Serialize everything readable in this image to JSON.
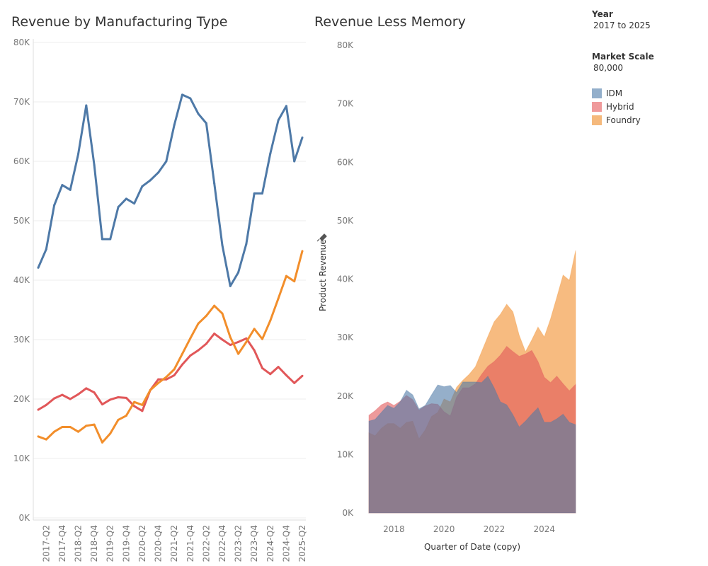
{
  "chart_data": [
    {
      "type": "line",
      "title": "Revenue by Manufacturing Type",
      "xlabel": "",
      "ylabel": "",
      "ylim": [
        0,
        80000
      ],
      "yticks": [
        "0K",
        "10K",
        "20K",
        "30K",
        "40K",
        "50K",
        "60K",
        "70K",
        "80K"
      ],
      "x": [
        "2017-Q1",
        "2017-Q2",
        "2017-Q3",
        "2017-Q4",
        "2018-Q1",
        "2018-Q2",
        "2018-Q3",
        "2018-Q4",
        "2019-Q1",
        "2019-Q2",
        "2019-Q3",
        "2019-Q4",
        "2020-Q1",
        "2020-Q2",
        "2020-Q3",
        "2020-Q4",
        "2021-Q1",
        "2021-Q2",
        "2021-Q3",
        "2021-Q4",
        "2022-Q1",
        "2022-Q2",
        "2022-Q3",
        "2022-Q4",
        "2023-Q1",
        "2023-Q2",
        "2023-Q3",
        "2023-Q4",
        "2024-Q1",
        "2024-Q2",
        "2024-Q3",
        "2024-Q4",
        "2025-Q1",
        "2025-Q2"
      ],
      "xticks": [
        "2017-Q2",
        "2017-Q4",
        "2018-Q2",
        "2018-Q4",
        "2019-Q2",
        "2019-Q4",
        "2020-Q2",
        "2020-Q4",
        "2021-Q2",
        "2021-Q4",
        "2022-Q2",
        "2022-Q4",
        "2023-Q2",
        "2023-Q4",
        "2024-Q2",
        "2024-Q4",
        "2025-Q2"
      ],
      "grid": true,
      "series": [
        {
          "name": "IDM",
          "color": "#4e79a7",
          "values": [
            42100,
            45200,
            52600,
            56000,
            55200,
            61200,
            69400,
            59400,
            46900,
            46900,
            52300,
            53700,
            52900,
            55800,
            56800,
            58100,
            60000,
            66100,
            71200,
            70600,
            68000,
            66400,
            56300,
            45900,
            39000,
            41300,
            46100,
            54600,
            54600,
            61300,
            66900,
            69300,
            60000,
            64000
          ]
        },
        {
          "name": "Hybrid",
          "color": "#e15759",
          "values": [
            18200,
            19000,
            20100,
            20700,
            20000,
            20800,
            21800,
            21100,
            19100,
            19900,
            20300,
            20200,
            18800,
            18000,
            21500,
            23300,
            23300,
            24000,
            25800,
            27300,
            28200,
            29300,
            31000,
            30000,
            29100,
            29600,
            30200,
            28200,
            25200,
            24200,
            25400,
            24000,
            22700,
            23900
          ]
        },
        {
          "name": "Foundry",
          "color": "#f28e2b",
          "values": [
            13700,
            13200,
            14500,
            15300,
            15300,
            14500,
            15500,
            15700,
            12700,
            14200,
            16500,
            17200,
            19500,
            19000,
            21500,
            22700,
            23700,
            25000,
            27600,
            30200,
            32700,
            34000,
            35700,
            34400,
            30400,
            27600,
            29600,
            31800,
            30100,
            33200,
            36900,
            40700,
            39800,
            44900
          ]
        }
      ]
    },
    {
      "type": "area",
      "title": "Revenue Less Memory",
      "xlabel": "Quarter of Date (copy)",
      "ylabel": "Product Revenue",
      "ylim": [
        0,
        80000
      ],
      "yticks": [
        "0K",
        "10K",
        "20K",
        "30K",
        "40K",
        "50K",
        "60K",
        "70K",
        "80K"
      ],
      "xticks": [
        "2018",
        "2020",
        "2022",
        "2024"
      ],
      "x_range": [
        "2017-Q1",
        "2025-Q2"
      ],
      "grid": false,
      "series": [
        {
          "name": "Foundry",
          "color": "#f28e2b",
          "values": [
            13700,
            13200,
            14500,
            15300,
            15300,
            14500,
            15500,
            15700,
            12700,
            14200,
            16500,
            17200,
            19500,
            19000,
            21500,
            22700,
            23700,
            25000,
            27600,
            30200,
            32700,
            34000,
            35700,
            34400,
            30400,
            27600,
            29600,
            31800,
            30100,
            33200,
            36900,
            40700,
            39800,
            44900
          ]
        },
        {
          "name": "Hybrid",
          "color": "#e15759",
          "values": [
            16700,
            17500,
            18500,
            19000,
            18400,
            19100,
            20100,
            19400,
            17600,
            18300,
            18700,
            18600,
            17300,
            16600,
            19800,
            21400,
            21400,
            22100,
            23700,
            25100,
            25900,
            27000,
            28500,
            27600,
            26800,
            27200,
            27800,
            25900,
            23200,
            22300,
            23400,
            22100,
            20900,
            22000
          ]
        },
        {
          "name": "IDM",
          "color": "#4e79a7",
          "values": [
            15700,
            16000,
            17200,
            18400,
            17900,
            19000,
            21000,
            20200,
            17800,
            18400,
            20200,
            21900,
            21600,
            21800,
            20600,
            22400,
            22400,
            22400,
            22300,
            23400,
            21400,
            19000,
            18500,
            16800,
            14700,
            15700,
            16900,
            18000,
            15500,
            15500,
            16100,
            16900,
            15500,
            15100
          ]
        }
      ]
    }
  ],
  "legend": {
    "year_label": "Year",
    "year_value": "2017 to 2025",
    "scale_label": "Market Scale",
    "scale_value": "80,000",
    "items": [
      {
        "label": "IDM",
        "color": "#93afcb"
      },
      {
        "label": "Hybrid",
        "color": "#ef9a9b"
      },
      {
        "label": "Foundry",
        "color": "#f5b97c"
      }
    ]
  }
}
